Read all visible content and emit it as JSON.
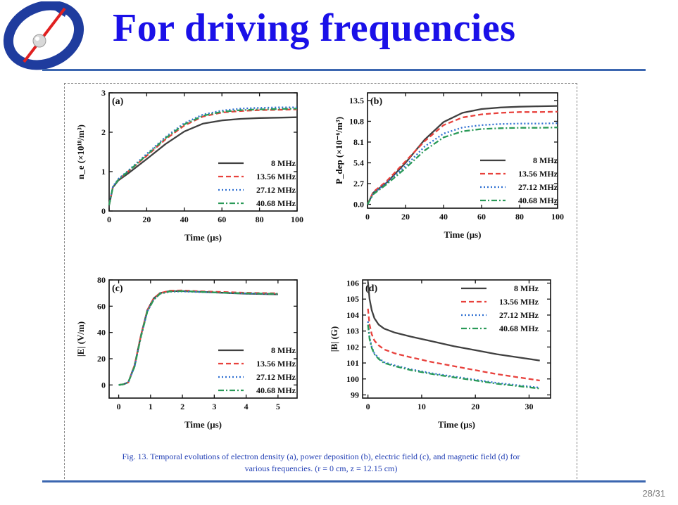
{
  "slide": {
    "title": "For driving frequencies",
    "page_number": "28/31",
    "caption_line1": "Fig. 13. Temporal evolutions of electron density (a), power deposition (b), electric field (c), and magnetic field (d) for",
    "caption_line2": "various frequencies. (r = 0 cm, z = 12.15 cm)"
  },
  "colors": {
    "title": "#1a10e8",
    "rule": "#3b66b0",
    "caption": "#2340b5",
    "s8": "#404040",
    "s13": "#e8413c",
    "s27": "#2f6fd1",
    "s40": "#2a9a58"
  },
  "chart_data": [
    {
      "type": "line",
      "panel_label": "(a)",
      "xlabel": "Time (μs)",
      "ylabel": "n_e (×10^18/m^3)",
      "xlim": [
        0,
        100
      ],
      "ylim": [
        0,
        3
      ],
      "xticks": [
        0,
        20,
        40,
        60,
        80,
        100
      ],
      "yticks": [
        0,
        1,
        2,
        3
      ],
      "legend_position": "bottom-right",
      "series": [
        {
          "name": "8 MHz",
          "color": "#404040",
          "dash": "solid",
          "x": [
            0,
            2,
            5,
            10,
            20,
            30,
            40,
            50,
            60,
            70,
            80,
            90,
            100
          ],
          "y": [
            0.15,
            0.6,
            0.78,
            0.95,
            1.32,
            1.7,
            2.02,
            2.22,
            2.3,
            2.34,
            2.36,
            2.37,
            2.38
          ]
        },
        {
          "name": "13.56 MHz",
          "color": "#e8413c",
          "dash": "dash",
          "x": [
            0,
            2,
            5,
            10,
            20,
            30,
            40,
            50,
            60,
            70,
            80,
            90,
            100
          ],
          "y": [
            0.15,
            0.6,
            0.8,
            1.0,
            1.4,
            1.82,
            2.17,
            2.4,
            2.5,
            2.54,
            2.56,
            2.57,
            2.58
          ]
        },
        {
          "name": "27.12 MHz",
          "color": "#2f6fd1",
          "dash": "dot",
          "x": [
            0,
            2,
            5,
            10,
            20,
            30,
            40,
            50,
            60,
            70,
            80,
            90,
            100
          ],
          "y": [
            0.15,
            0.62,
            0.82,
            1.02,
            1.45,
            1.88,
            2.23,
            2.45,
            2.55,
            2.6,
            2.62,
            2.63,
            2.63
          ]
        },
        {
          "name": "40.68 MHz",
          "color": "#2a9a58",
          "dash": "dashdot",
          "x": [
            0,
            2,
            5,
            10,
            20,
            30,
            40,
            50,
            60,
            70,
            80,
            90,
            100
          ],
          "y": [
            0.15,
            0.6,
            0.8,
            1.0,
            1.42,
            1.85,
            2.2,
            2.42,
            2.52,
            2.56,
            2.58,
            2.59,
            2.6
          ]
        }
      ]
    },
    {
      "type": "line",
      "panel_label": "(b)",
      "xlabel": "Time (μs)",
      "ylabel": "P_dep (×10^-6/m^3)",
      "xlim": [
        0,
        100
      ],
      "ylim": [
        -0.5,
        14.5
      ],
      "xticks": [
        0,
        20,
        40,
        60,
        80,
        100
      ],
      "yticks": [
        0.0,
        2.7,
        5.4,
        8.1,
        10.8,
        13.5
      ],
      "ytick_labels": [
        "0.0",
        "2.7",
        "5.4",
        "8.1",
        "10.8",
        "13.5"
      ],
      "legend_position": "bottom-right",
      "series": [
        {
          "name": "8 MHz",
          "color": "#404040",
          "dash": "solid",
          "x": [
            0,
            3,
            10,
            20,
            30,
            40,
            50,
            60,
            70,
            80,
            90,
            100
          ],
          "y": [
            0.0,
            1.5,
            2.8,
            5.4,
            8.4,
            10.7,
            11.9,
            12.4,
            12.6,
            12.7,
            12.75,
            12.8
          ]
        },
        {
          "name": "13.56 MHz",
          "color": "#e8413c",
          "dash": "dash",
          "x": [
            0,
            3,
            10,
            20,
            30,
            40,
            50,
            60,
            70,
            80,
            90,
            100
          ],
          "y": [
            0.0,
            1.6,
            3.0,
            5.6,
            8.2,
            10.3,
            11.3,
            11.7,
            11.9,
            12.0,
            12.0,
            12.05
          ]
        },
        {
          "name": "27.12 MHz",
          "color": "#2f6fd1",
          "dash": "dot",
          "x": [
            0,
            3,
            10,
            20,
            30,
            40,
            50,
            60,
            70,
            80,
            90,
            100
          ],
          "y": [
            0.0,
            1.4,
            2.8,
            5.0,
            7.5,
            9.2,
            10.0,
            10.3,
            10.45,
            10.5,
            10.5,
            10.55
          ]
        },
        {
          "name": "40.68 MHz",
          "color": "#2a9a58",
          "dash": "dashdot",
          "x": [
            0,
            3,
            10,
            20,
            30,
            40,
            50,
            60,
            70,
            80,
            90,
            100
          ],
          "y": [
            0.0,
            1.3,
            2.6,
            4.7,
            7.0,
            8.7,
            9.5,
            9.8,
            9.9,
            9.95,
            9.95,
            10.0
          ]
        }
      ]
    },
    {
      "type": "line",
      "panel_label": "(c)",
      "xlabel": "Time (μs)",
      "ylabel": "|E| (V/m)",
      "xlim": [
        -0.3,
        5.6
      ],
      "ylim": [
        -10,
        80
      ],
      "xticks": [
        0,
        1,
        2,
        3,
        4,
        5
      ],
      "yticks": [
        0,
        20,
        40,
        60,
        80
      ],
      "legend_position": "bottom-right",
      "series": [
        {
          "name": "8 MHz",
          "color": "#404040",
          "dash": "solid",
          "x": [
            0,
            0.15,
            0.3,
            0.5,
            0.7,
            0.9,
            1.1,
            1.3,
            1.6,
            2.0,
            2.5,
            3.0,
            3.5,
            4.0,
            4.5,
            5.0
          ],
          "y": [
            0,
            0.5,
            2,
            15,
            38,
            57,
            66,
            70,
            71.5,
            71.5,
            71,
            70.5,
            70,
            69.5,
            69.3,
            69
          ]
        },
        {
          "name": "13.56 MHz",
          "color": "#e8413c",
          "dash": "dash",
          "x": [
            0,
            0.15,
            0.3,
            0.5,
            0.7,
            0.9,
            1.1,
            1.3,
            1.6,
            2.0,
            2.5,
            3.0,
            3.5,
            4.0,
            4.5,
            5.0
          ],
          "y": [
            0,
            0.5,
            2,
            15,
            38,
            57,
            66,
            70,
            71.8,
            72,
            71.4,
            71,
            70.6,
            70.2,
            70,
            69.8
          ]
        },
        {
          "name": "27.12 MHz",
          "color": "#2f6fd1",
          "dash": "dot",
          "x": [
            0,
            0.15,
            0.3,
            0.5,
            0.7,
            0.9,
            1.1,
            1.3,
            1.6,
            2.0,
            2.5,
            3.0,
            3.5,
            4.0,
            4.5,
            5.0
          ],
          "y": [
            0,
            0.5,
            2,
            14,
            37,
            56,
            65,
            69.5,
            71,
            71.2,
            70.8,
            70.4,
            70,
            69.7,
            69.5,
            69.3
          ]
        },
        {
          "name": "40.68 MHz",
          "color": "#2a9a58",
          "dash": "dashdot",
          "x": [
            0,
            0.15,
            0.3,
            0.5,
            0.7,
            0.9,
            1.1,
            1.3,
            1.6,
            2.0,
            2.5,
            3.0,
            3.5,
            4.0,
            4.5,
            5.0
          ],
          "y": [
            0,
            0.5,
            2,
            14,
            37,
            56,
            65,
            69.5,
            71.2,
            71.5,
            71,
            70.5,
            70.1,
            69.8,
            69.6,
            69.4
          ]
        }
      ]
    },
    {
      "type": "line",
      "panel_label": "(d)",
      "xlabel": "Time (μs)",
      "ylabel": "|B| (G)",
      "xlim": [
        -1,
        34
      ],
      "ylim": [
        98.8,
        106.2
      ],
      "xticks": [
        0,
        10,
        20,
        30
      ],
      "yticks": [
        99,
        100,
        101,
        102,
        103,
        104,
        105,
        106
      ],
      "legend_position": "top-right",
      "series": [
        {
          "name": "8 MHz",
          "color": "#404040",
          "dash": "solid",
          "x": [
            0,
            0.3,
            0.7,
            1.2,
            2,
            3,
            5,
            8,
            12,
            16,
            20,
            24,
            28,
            32
          ],
          "y": [
            106.1,
            105.0,
            104.3,
            103.8,
            103.4,
            103.15,
            102.9,
            102.65,
            102.35,
            102.05,
            101.8,
            101.55,
            101.35,
            101.15
          ]
        },
        {
          "name": "13.56 MHz",
          "color": "#e8413c",
          "dash": "dash",
          "x": [
            0,
            0.3,
            0.7,
            1.2,
            2,
            3,
            5,
            8,
            12,
            16,
            20,
            24,
            28,
            32
          ],
          "y": [
            104.4,
            103.4,
            102.8,
            102.4,
            102.1,
            101.85,
            101.6,
            101.35,
            101.05,
            100.8,
            100.55,
            100.3,
            100.1,
            99.9
          ]
        },
        {
          "name": "27.12 MHz",
          "color": "#2f6fd1",
          "dash": "dot",
          "x": [
            0,
            0.3,
            0.7,
            1.2,
            2,
            3,
            5,
            8,
            12,
            16,
            20,
            24,
            28,
            32
          ],
          "y": [
            103.6,
            102.6,
            102.0,
            101.6,
            101.3,
            101.05,
            100.85,
            100.6,
            100.35,
            100.15,
            99.95,
            99.75,
            99.6,
            99.45
          ]
        },
        {
          "name": "40.68 MHz",
          "color": "#2a9a58",
          "dash": "dashdot",
          "x": [
            0,
            0.3,
            0.7,
            1.2,
            2,
            3,
            5,
            8,
            12,
            16,
            20,
            24,
            28,
            32
          ],
          "y": [
            103.4,
            102.5,
            101.95,
            101.55,
            101.25,
            101.0,
            100.8,
            100.55,
            100.3,
            100.1,
            99.9,
            99.7,
            99.55,
            99.4
          ]
        }
      ]
    }
  ]
}
